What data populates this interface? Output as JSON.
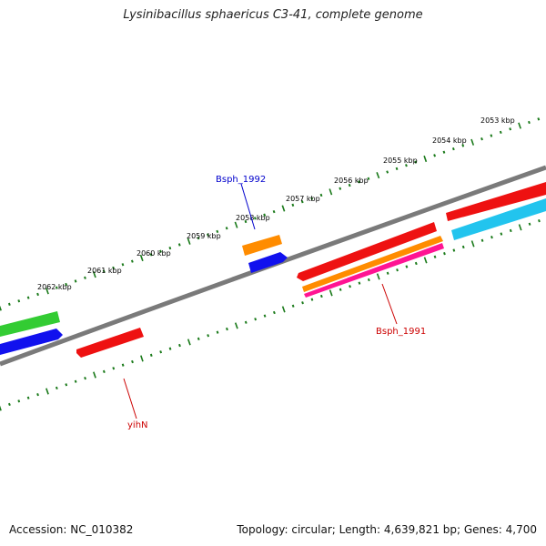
{
  "title": "Lysinibacillus sphaericus C3-41, complete genome",
  "footer": {
    "accession": "Accession: NC_010382",
    "summary": "Topology: circular; Length: 4,639,821 bp; Genes: 4,700"
  },
  "scale_labels": [
    "2053 kbp",
    "2054 kbp",
    "2055 kbp",
    "2056 kbp",
    "2057 kbp",
    "2058 kbp",
    "2059 kbp",
    "2060 kbp",
    "2061 kbp",
    "2062 kbp"
  ],
  "feature_labels": {
    "bsph_1992": "Bsph_1992",
    "bsph_1991": "Bsph_1991",
    "yihn": "yihN"
  },
  "colors": {
    "backbone": "#7a7a7a",
    "tick": "#1a7a1a",
    "red": "#ee1111",
    "blue": "#1111ee",
    "cyan": "#22c4ee",
    "green": "#33cc33",
    "orange": "#ff8c00",
    "magenta": "#ff1493",
    "label_blue": "#0000cc",
    "label_red": "#cc0000"
  }
}
